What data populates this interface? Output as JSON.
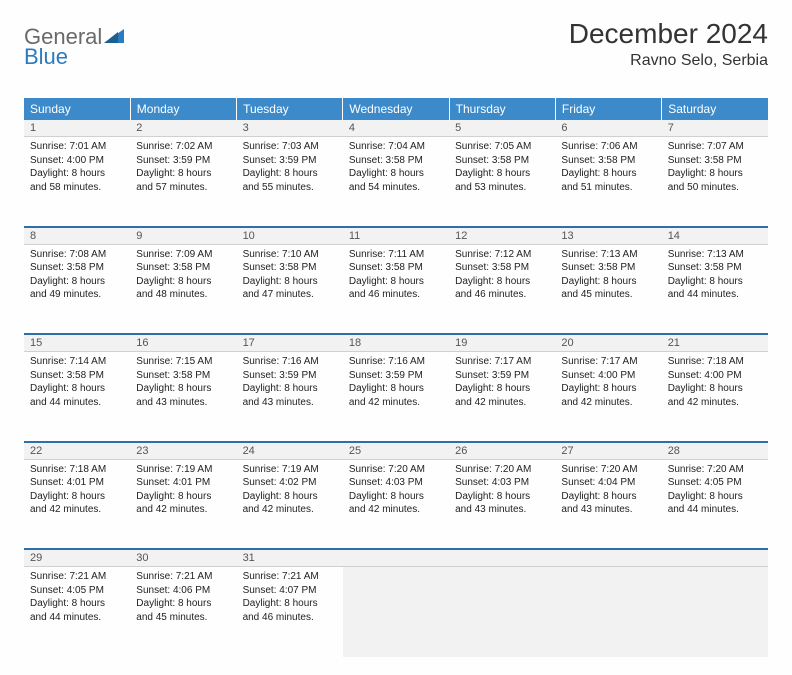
{
  "brand": {
    "part1": "General",
    "part2": "Blue"
  },
  "title": "December 2024",
  "location": "Ravno Selo, Serbia",
  "colors": {
    "header_bg": "#3c8ac9",
    "header_text": "#ffffff",
    "row_separator": "#2f6fa8",
    "daynum_bg": "#f2f2f2",
    "body_text": "#222222",
    "brand_gray": "#6a6a6a",
    "brand_blue": "#2b7bbf"
  },
  "weekday_headers": [
    "Sunday",
    "Monday",
    "Tuesday",
    "Wednesday",
    "Thursday",
    "Friday",
    "Saturday"
  ],
  "weeks": [
    {
      "nums": [
        "1",
        "2",
        "3",
        "4",
        "5",
        "6",
        "7"
      ],
      "cells": [
        {
          "sunrise": "7:01 AM",
          "sunset": "4:00 PM",
          "daylight": "8 hours and 58 minutes."
        },
        {
          "sunrise": "7:02 AM",
          "sunset": "3:59 PM",
          "daylight": "8 hours and 57 minutes."
        },
        {
          "sunrise": "7:03 AM",
          "sunset": "3:59 PM",
          "daylight": "8 hours and 55 minutes."
        },
        {
          "sunrise": "7:04 AM",
          "sunset": "3:58 PM",
          "daylight": "8 hours and 54 minutes."
        },
        {
          "sunrise": "7:05 AM",
          "sunset": "3:58 PM",
          "daylight": "8 hours and 53 minutes."
        },
        {
          "sunrise": "7:06 AM",
          "sunset": "3:58 PM",
          "daylight": "8 hours and 51 minutes."
        },
        {
          "sunrise": "7:07 AM",
          "sunset": "3:58 PM",
          "daylight": "8 hours and 50 minutes."
        }
      ]
    },
    {
      "nums": [
        "8",
        "9",
        "10",
        "11",
        "12",
        "13",
        "14"
      ],
      "cells": [
        {
          "sunrise": "7:08 AM",
          "sunset": "3:58 PM",
          "daylight": "8 hours and 49 minutes."
        },
        {
          "sunrise": "7:09 AM",
          "sunset": "3:58 PM",
          "daylight": "8 hours and 48 minutes."
        },
        {
          "sunrise": "7:10 AM",
          "sunset": "3:58 PM",
          "daylight": "8 hours and 47 minutes."
        },
        {
          "sunrise": "7:11 AM",
          "sunset": "3:58 PM",
          "daylight": "8 hours and 46 minutes."
        },
        {
          "sunrise": "7:12 AM",
          "sunset": "3:58 PM",
          "daylight": "8 hours and 46 minutes."
        },
        {
          "sunrise": "7:13 AM",
          "sunset": "3:58 PM",
          "daylight": "8 hours and 45 minutes."
        },
        {
          "sunrise": "7:13 AM",
          "sunset": "3:58 PM",
          "daylight": "8 hours and 44 minutes."
        }
      ]
    },
    {
      "nums": [
        "15",
        "16",
        "17",
        "18",
        "19",
        "20",
        "21"
      ],
      "cells": [
        {
          "sunrise": "7:14 AM",
          "sunset": "3:58 PM",
          "daylight": "8 hours and 44 minutes."
        },
        {
          "sunrise": "7:15 AM",
          "sunset": "3:58 PM",
          "daylight": "8 hours and 43 minutes."
        },
        {
          "sunrise": "7:16 AM",
          "sunset": "3:59 PM",
          "daylight": "8 hours and 43 minutes."
        },
        {
          "sunrise": "7:16 AM",
          "sunset": "3:59 PM",
          "daylight": "8 hours and 42 minutes."
        },
        {
          "sunrise": "7:17 AM",
          "sunset": "3:59 PM",
          "daylight": "8 hours and 42 minutes."
        },
        {
          "sunrise": "7:17 AM",
          "sunset": "4:00 PM",
          "daylight": "8 hours and 42 minutes."
        },
        {
          "sunrise": "7:18 AM",
          "sunset": "4:00 PM",
          "daylight": "8 hours and 42 minutes."
        }
      ]
    },
    {
      "nums": [
        "22",
        "23",
        "24",
        "25",
        "26",
        "27",
        "28"
      ],
      "cells": [
        {
          "sunrise": "7:18 AM",
          "sunset": "4:01 PM",
          "daylight": "8 hours and 42 minutes."
        },
        {
          "sunrise": "7:19 AM",
          "sunset": "4:01 PM",
          "daylight": "8 hours and 42 minutes."
        },
        {
          "sunrise": "7:19 AM",
          "sunset": "4:02 PM",
          "daylight": "8 hours and 42 minutes."
        },
        {
          "sunrise": "7:20 AM",
          "sunset": "4:03 PM",
          "daylight": "8 hours and 42 minutes."
        },
        {
          "sunrise": "7:20 AM",
          "sunset": "4:03 PM",
          "daylight": "8 hours and 43 minutes."
        },
        {
          "sunrise": "7:20 AM",
          "sunset": "4:04 PM",
          "daylight": "8 hours and 43 minutes."
        },
        {
          "sunrise": "7:20 AM",
          "sunset": "4:05 PM",
          "daylight": "8 hours and 44 minutes."
        }
      ]
    },
    {
      "nums": [
        "29",
        "30",
        "31",
        "",
        "",
        "",
        ""
      ],
      "cells": [
        {
          "sunrise": "7:21 AM",
          "sunset": "4:05 PM",
          "daylight": "8 hours and 44 minutes."
        },
        {
          "sunrise": "7:21 AM",
          "sunset": "4:06 PM",
          "daylight": "8 hours and 45 minutes."
        },
        {
          "sunrise": "7:21 AM",
          "sunset": "4:07 PM",
          "daylight": "8 hours and 46 minutes."
        },
        null,
        null,
        null,
        null
      ]
    }
  ],
  "labels": {
    "sunrise": "Sunrise: ",
    "sunset": "Sunset: ",
    "daylight": "Daylight: "
  }
}
